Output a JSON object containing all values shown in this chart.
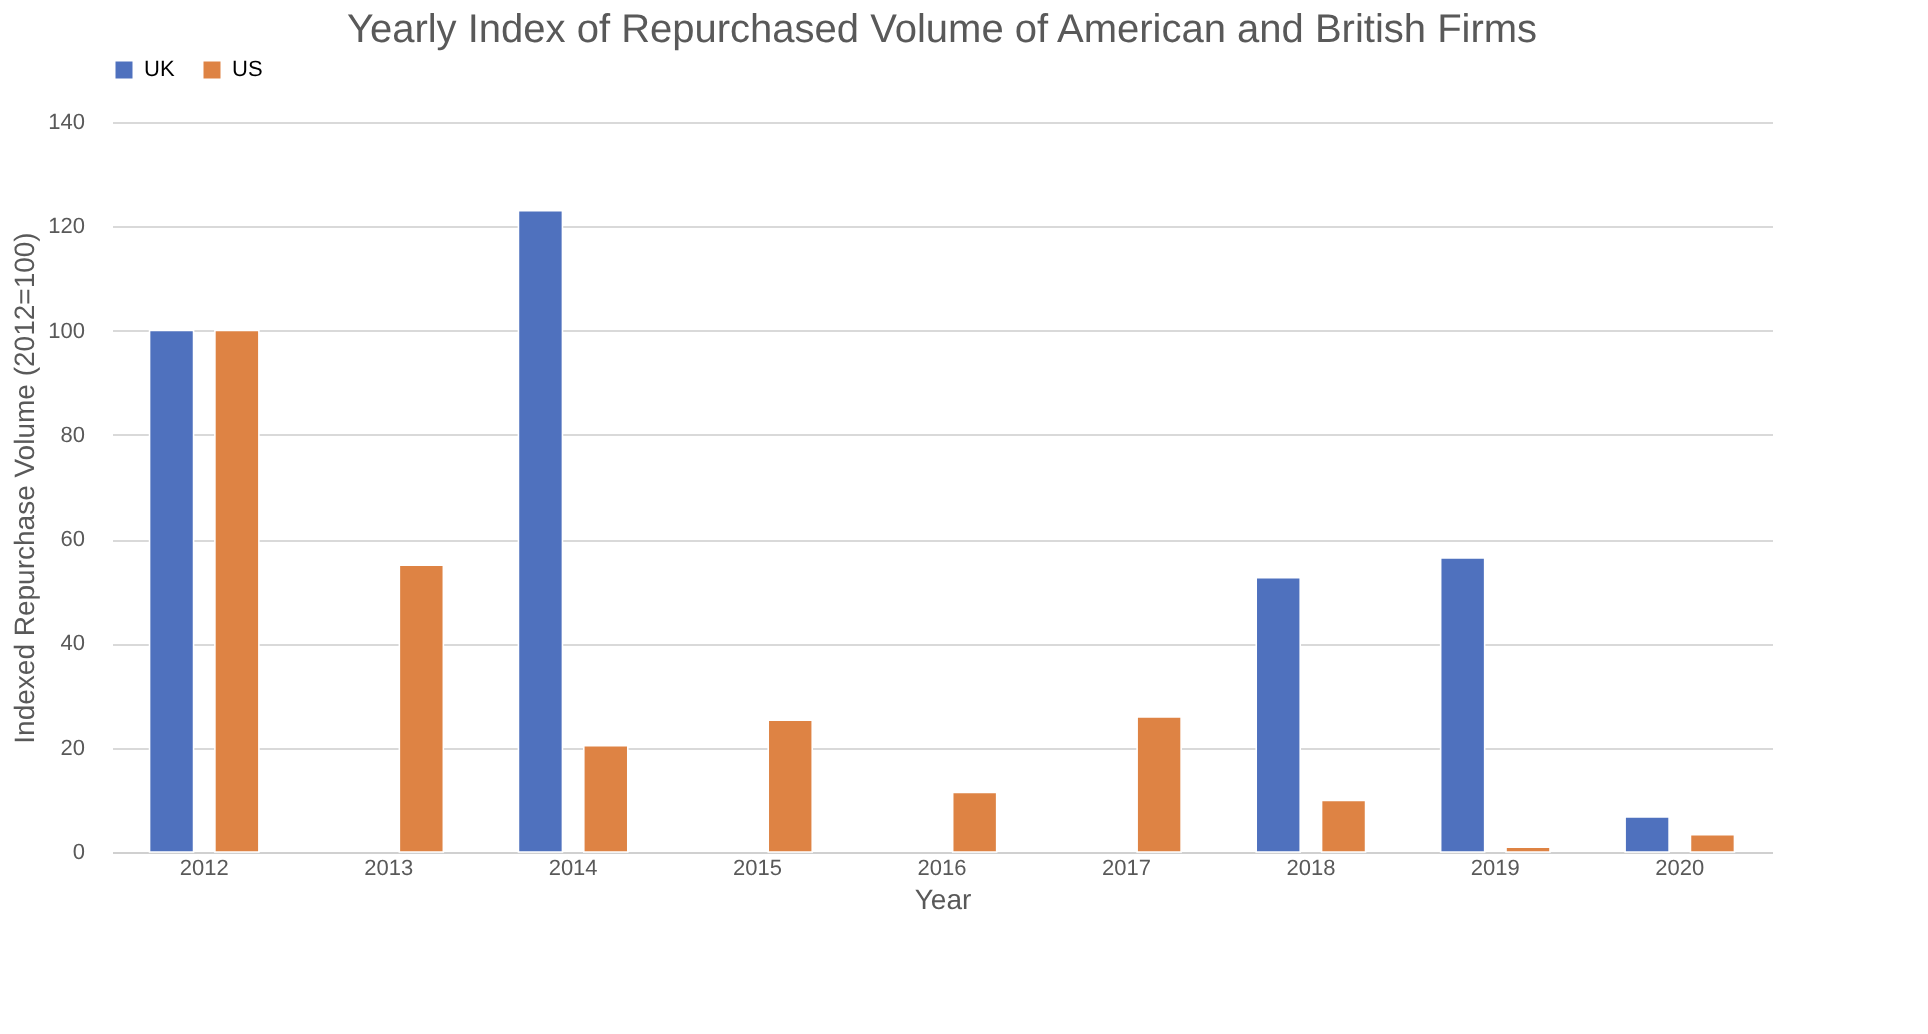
{
  "chart_data": {
    "type": "bar",
    "title": "Yearly Index of Repurchased Volume of American and British Firms",
    "xlabel": "Year",
    "ylabel": "Indexed Repurchase Volume  (2012=100)",
    "categories": [
      "2012",
      "2013",
      "2014",
      "2015",
      "2016",
      "2017",
      "2018",
      "2019",
      "2020"
    ],
    "series": [
      {
        "name": "UK",
        "color": "#4f71be",
        "values": [
          100,
          null,
          123,
          null,
          null,
          null,
          52.6,
          56.4,
          6.7
        ]
      },
      {
        "name": "US",
        "color": "#de8344",
        "values": [
          100,
          55,
          20.4,
          25.3,
          11.4,
          25.9,
          9.9,
          0.9,
          3.3
        ]
      }
    ],
    "ylim": [
      0,
      140
    ],
    "yticks": [
      0,
      20,
      40,
      60,
      80,
      100,
      120,
      140
    ],
    "grid": "y",
    "legend": "top"
  }
}
